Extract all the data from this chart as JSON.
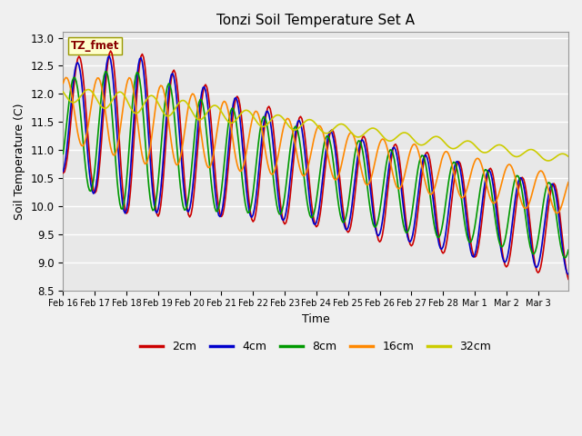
{
  "title": "Tonzi Soil Temperature Set A",
  "xlabel": "Time",
  "ylabel": "Soil Temperature (C)",
  "ylim": [
    8.5,
    13.1
  ],
  "xlim": [
    0,
    383
  ],
  "colors": {
    "2cm": "#cc0000",
    "4cm": "#0000cc",
    "8cm": "#009900",
    "16cm": "#ff8800",
    "32cm": "#cccc00"
  },
  "tick_labels": [
    "Feb 16",
    "Feb 17",
    "Feb 18",
    "Feb 19",
    "Feb 20",
    "Feb 21",
    "Feb 22",
    "Feb 23",
    "Feb 24",
    "Feb 25",
    "Feb 26",
    "Feb 27",
    "Feb 28",
    "Mar 1",
    "Mar 2",
    "Mar 3"
  ],
  "annotation_text": "TZ_fmet",
  "background_color": "#f0f0f0",
  "plot_bg_color": "#e8e8e8",
  "grid_color": "#ffffff",
  "n_points": 384,
  "hours_per_day": 24
}
